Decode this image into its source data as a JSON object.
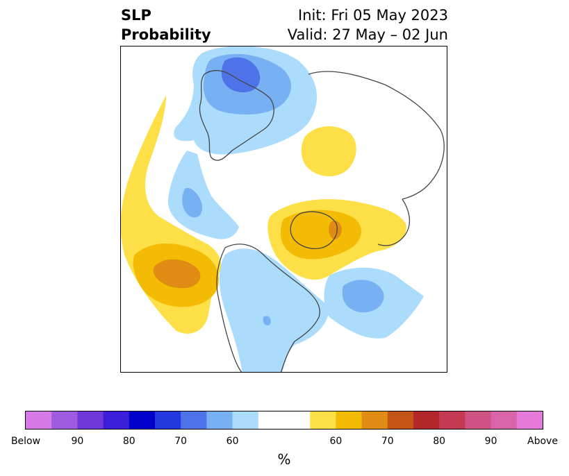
{
  "title": {
    "left_line1": "SLP",
    "left_line2": "Probability",
    "right_line1": "Init: Fri 05 May 2023",
    "right_line2": "Valid: 27 May – 02 Jun"
  },
  "colorbar": {
    "unit": "%",
    "colors": [
      "#d67ae9",
      "#a05ce0",
      "#7038db",
      "#3b1ed9",
      "#0000cc",
      "#2438e0",
      "#4e73e8",
      "#77b1f4",
      "#acdcfc",
      "#ffffff",
      "#ffffff",
      "#fde048",
      "#f4bb05",
      "#e08b14",
      "#c45517",
      "#b3262a",
      "#c33a52",
      "#cf5382",
      "#da64a9",
      "#e57ad9"
    ],
    "tick_labels": [
      "Below",
      "90",
      "80",
      "70",
      "60",
      "60",
      "70",
      "80",
      "90",
      "Above"
    ]
  },
  "map": {
    "legend": {
      "blue_light": "#acdcfc",
      "blue_mid": "#77b1f4",
      "blue_dark": "#4e73e8",
      "yellow": "#fde048",
      "orange": "#f4bb05",
      "dark_orange": "#e08b14"
    }
  }
}
